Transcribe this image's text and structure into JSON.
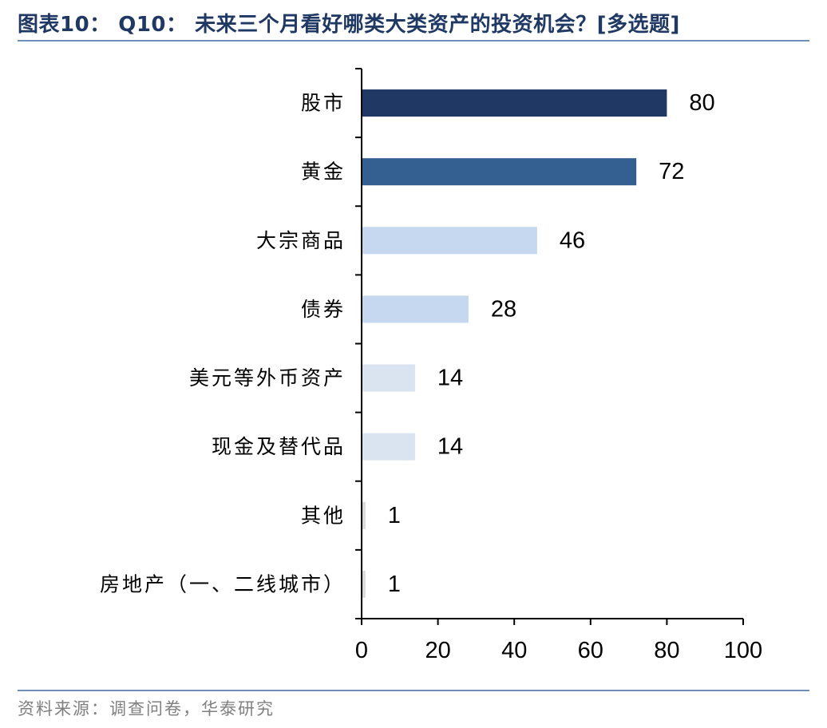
{
  "header": {
    "title": "图表10： Q10： 未来三个月看好哪类大类资产的投资机会？[多选题]"
  },
  "footer": {
    "source": "资料来源：调查问卷，华泰研究"
  },
  "chart_data": {
    "type": "bar",
    "orientation": "horizontal",
    "categories": [
      "股市",
      "黄金",
      "大宗商品",
      "债券",
      "美元等外币资产",
      "现金及替代品",
      "其他",
      "房地产（一、二线城市）"
    ],
    "values": [
      80,
      72,
      46,
      28,
      14,
      14,
      1,
      1
    ],
    "bar_colors": [
      "#203864",
      "#335f91",
      "#c5d8f0",
      "#c5d8f0",
      "#dae3f0",
      "#dae3f0",
      "#d9d9d9",
      "#d9d9d9"
    ],
    "xlim": [
      0,
      100
    ],
    "xticks": [
      0,
      20,
      40,
      60,
      80,
      100
    ],
    "data_labels": true,
    "grid": false,
    "legend": false
  }
}
